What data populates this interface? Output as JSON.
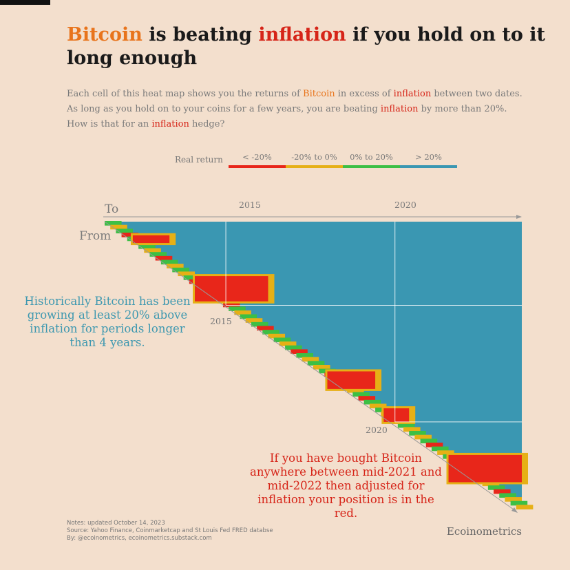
{
  "title": {
    "part1": "Bitcoin",
    "part2": " is beating ",
    "part3": "inflation",
    "part4": " if you hold on to it long enough"
  },
  "subtitle": {
    "l1a": "Each cell of this heat map shows you the returns of ",
    "l1b": "Bitcoin",
    "l1c": " in excess of ",
    "l1d": "inflation",
    "l1e": " between two dates.",
    "l2a": "As long as you hold on to your coins for a few years, you are beating ",
    "l2b": "inflation",
    "l2c": " by more than 20%.",
    "l3a": "How is that for an ",
    "l3b": "inflation",
    "l3c": " hedge?"
  },
  "legend": {
    "title": "Real return",
    "items": [
      {
        "label": "< -20%",
        "color": "#e8261a"
      },
      {
        "label": "-20% to 0%",
        "color": "#e6b016"
      },
      {
        "label": "0% to 20%",
        "color": "#3cbf45"
      },
      {
        "label": "> 20%",
        "color": "#3a97b2"
      }
    ]
  },
  "axes": {
    "to_label": "To",
    "from_label": "From",
    "top_ticks": [
      "2015",
      "2020"
    ],
    "diag_ticks": [
      "2015",
      "2020"
    ]
  },
  "annotations": {
    "left": "Historically Bitcoin has been growing at least 20% above inflation for periods longer than 4 years.",
    "right": "If you have bought Bitcoin anywhere between mid-2021 and mid-2022 then adjusted for inflation your position is in the red."
  },
  "notes": [
    "Notes: updated October 14, 2023",
    "Source: Yahoo Finance, Coinmarketcap and St Louis Fed FRED databse",
    "By: @ecoinometrics, ecoinometrics.substack.com"
  ],
  "brand": "Ecoinometrics",
  "chart_data": {
    "type": "heatmap",
    "x_axis": "To (date)",
    "y_axis": "From (date)",
    "range": [
      "2011-06",
      "2023-10"
    ],
    "default_category": "> 20%",
    "red_regions": [
      {
        "from": [
          "2012-01",
          "2012-05"
        ],
        "to": [
          "2012-04",
          "2013-05"
        ],
        "category": "< -20%"
      },
      {
        "from": [
          "2013-10",
          "2014-11"
        ],
        "to": [
          "2014-02",
          "2016-04"
        ],
        "category": "< -20%"
      },
      {
        "from": [
          "2017-11",
          "2018-08"
        ],
        "to": [
          "2018-01",
          "2019-06"
        ],
        "category": "< -20%"
      },
      {
        "from": [
          "2019-06",
          "2020-01"
        ],
        "to": [
          "2019-09",
          "2020-06"
        ],
        "category": "< -20%"
      },
      {
        "from": [
          "2021-06",
          "2022-08"
        ],
        "to": [
          "2021-08",
          "2023-10"
        ],
        "category": "< -20%"
      }
    ]
  }
}
